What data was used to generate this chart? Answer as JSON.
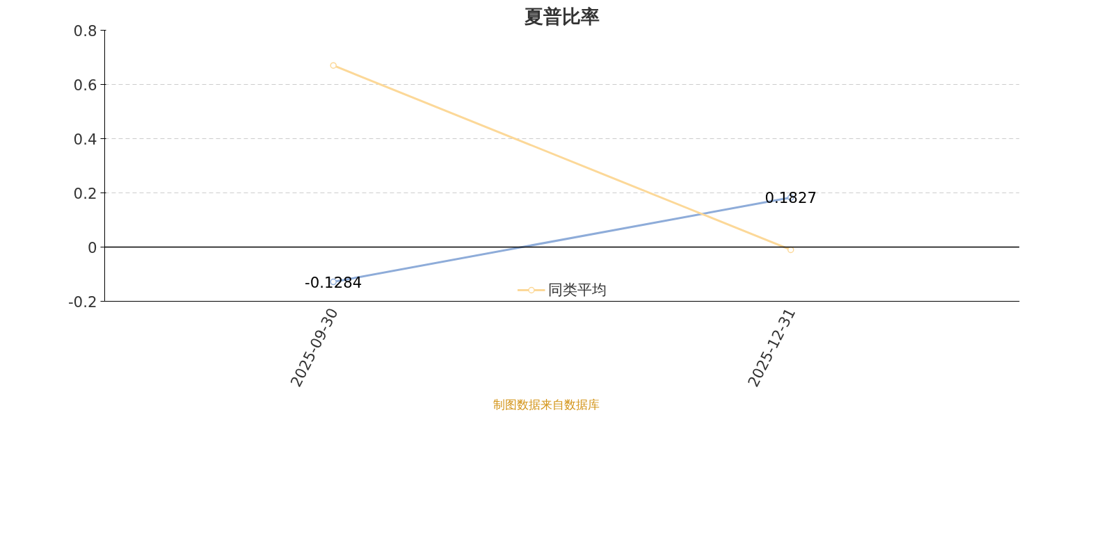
{
  "chart_data": {
    "type": "line",
    "title": "夏普比率",
    "categories": [
      "2025-09-30",
      "2025-12-31"
    ],
    "series": [
      {
        "color": "#8eacd9",
        "values": [
          -0.1284,
          0.1827
        ],
        "value_labels": [
          "-0.1284",
          "0.1827"
        ]
      },
      {
        "name": "同类平均",
        "color": "#fcd898",
        "values": [
          0.67,
          -0.01
        ]
      }
    ],
    "ylim": [
      -0.2,
      0.8
    ],
    "yticks": [
      -0.2,
      0,
      0.2,
      0.4,
      0.6,
      0.8
    ],
    "grid": "y",
    "legend": "bottom",
    "marker": "circle",
    "line_style": "solid",
    "annotations": [
      "制图数据来自数据库"
    ]
  }
}
